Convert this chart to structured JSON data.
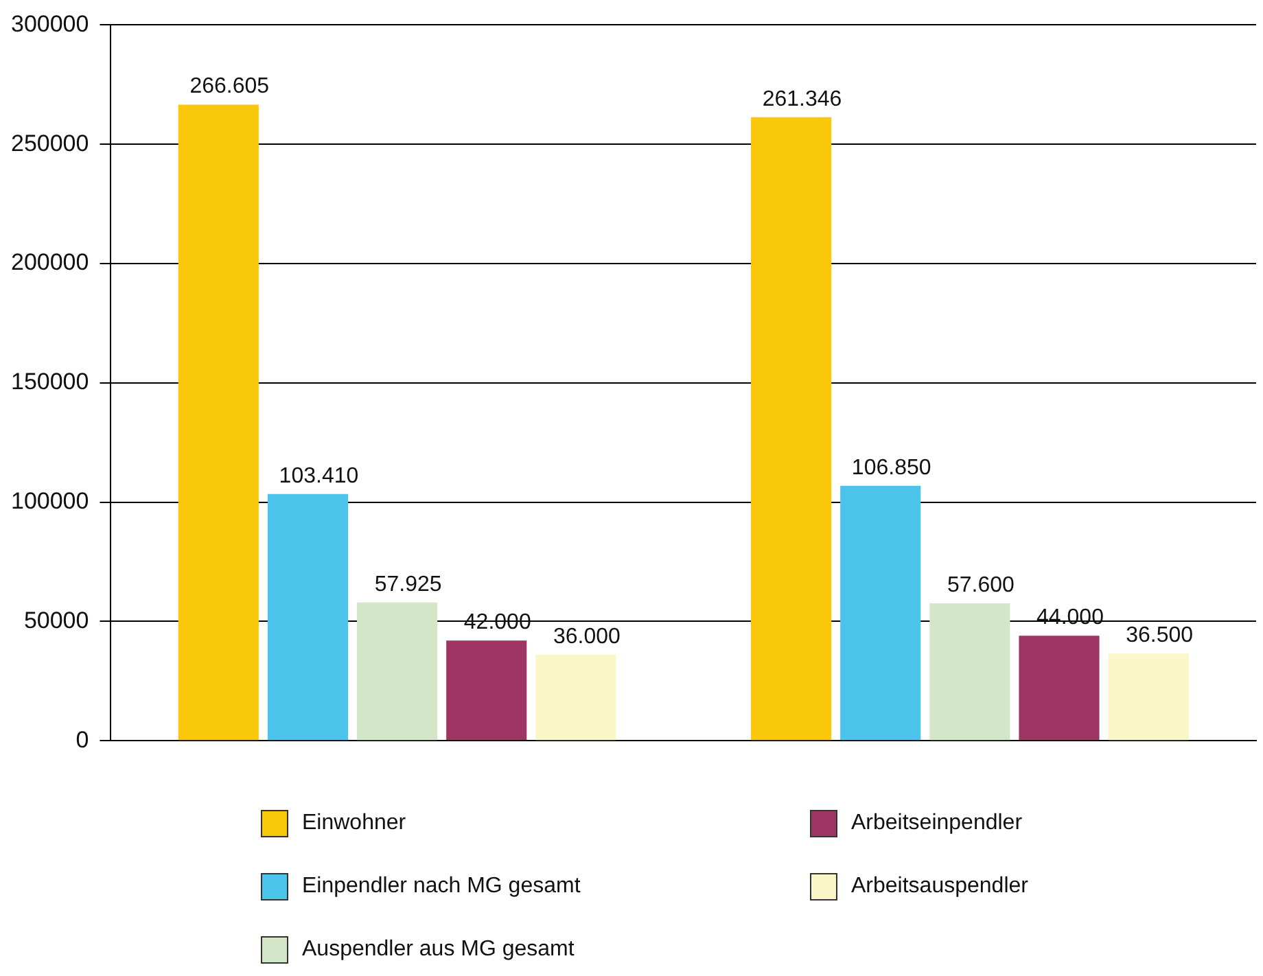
{
  "chart_data": {
    "type": "bar",
    "categories": [
      null,
      null
    ],
    "series": [
      {
        "name": "Einwohner",
        "color": "#fac80a",
        "values": [
          266605,
          261346
        ],
        "value_labels": [
          "266.605",
          "261.346"
        ]
      },
      {
        "name": "Einpendler nach MG gesamt",
        "color": "#4bc3eb",
        "values": [
          103410,
          106850
        ],
        "value_labels": [
          "103.410",
          "106.850"
        ]
      },
      {
        "name": "Auspendler aus MG gesamt",
        "color": "#d4e6c8",
        "values": [
          57925,
          57600
        ],
        "value_labels": [
          "57.925",
          "57.600"
        ]
      },
      {
        "name": "Arbeitseinpendler",
        "color": "#9e3564",
        "values": [
          42000,
          44000
        ],
        "value_labels": [
          "42.000",
          "44.000"
        ]
      },
      {
        "name": "Arbeitsauspendler",
        "color": "#faf6c8",
        "values": [
          36000,
          36500
        ],
        "value_labels": [
          "36.000",
          "36.500"
        ]
      }
    ],
    "ylim": [
      0,
      300000
    ],
    "yticks": [
      0,
      50000,
      100000,
      150000,
      200000,
      250000,
      300000
    ],
    "grid": "y",
    "legend": "bottom"
  }
}
